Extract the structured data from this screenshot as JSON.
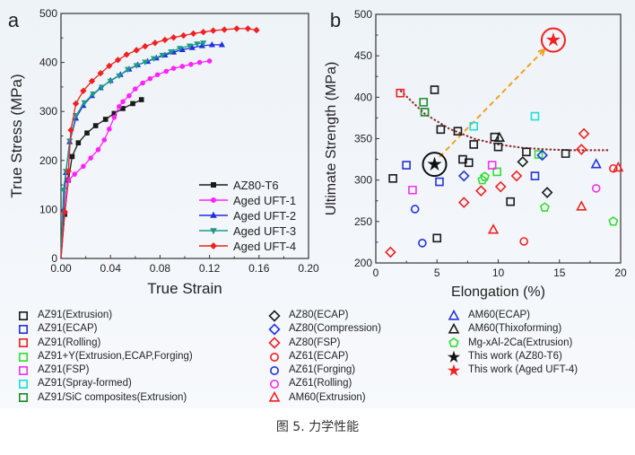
{
  "caption": "图 5. 力学性能",
  "chart_data": [
    {
      "panel": "a",
      "type": "line",
      "xlabel": "True Strain",
      "ylabel": "True Stress (MPa)",
      "xlim": [
        0,
        0.2
      ],
      "ylim": [
        0,
        500
      ],
      "xticks": [
        "0.00",
        "0.04",
        "0.08",
        "0.12",
        "0.16",
        "0.20"
      ],
      "yticks": [
        "0",
        "100",
        "200",
        "300",
        "400",
        "500"
      ],
      "legend_position": "bottom-right",
      "series": [
        {
          "name": "AZ80-T6",
          "color": "#1a1a1a",
          "marker": "square",
          "x": [
            0,
            0.003,
            0.006,
            0.009,
            0.014,
            0.021,
            0.028,
            0.036,
            0.043,
            0.05,
            0.058,
            0.065
          ],
          "y": [
            0,
            90,
            160,
            208,
            236,
            256,
            271,
            284,
            296,
            306,
            316,
            324
          ]
        },
        {
          "name": "Aged UFT-1",
          "color": "#ff22ff",
          "marker": "circle",
          "x": [
            0,
            0.003,
            0.006,
            0.011,
            0.018,
            0.024,
            0.03,
            0.035,
            0.039,
            0.043,
            0.047,
            0.05,
            0.055,
            0.06,
            0.066,
            0.072,
            0.078,
            0.085,
            0.091,
            0.098,
            0.105,
            0.112,
            0.12
          ],
          "y": [
            0,
            95,
            160,
            172,
            188,
            205,
            222,
            242,
            264,
            288,
            310,
            320,
            332,
            346,
            358,
            367,
            375,
            382,
            388,
            392,
            396,
            400,
            403
          ]
        },
        {
          "name": "Aged UFT-2",
          "color": "#1f2fe0",
          "marker": "triangle-up",
          "x": [
            0,
            0.002,
            0.004,
            0.007,
            0.012,
            0.018,
            0.025,
            0.032,
            0.04,
            0.048,
            0.055,
            0.062,
            0.07,
            0.077,
            0.084,
            0.091,
            0.098,
            0.106,
            0.114,
            0.122,
            0.13
          ],
          "y": [
            0,
            100,
            175,
            238,
            286,
            312,
            332,
            348,
            363,
            375,
            386,
            395,
            402,
            409,
            415,
            421,
            426,
            430,
            434,
            436,
            436
          ]
        },
        {
          "name": "Aged UFT-3",
          "color": "#1f9a8a",
          "marker": "triangle-down",
          "x": [
            0,
            0.002,
            0.004,
            0.007,
            0.012,
            0.019,
            0.026,
            0.033,
            0.04,
            0.047,
            0.054,
            0.061,
            0.068,
            0.075,
            0.082,
            0.089,
            0.096,
            0.104,
            0.11,
            0.115
          ],
          "y": [
            0,
            140,
            178,
            240,
            292,
            318,
            336,
            350,
            362,
            373,
            386,
            394,
            401,
            408,
            415,
            422,
            429,
            434,
            438,
            440
          ]
        },
        {
          "name": "Aged UFT-4",
          "color": "#ee2222",
          "marker": "diamond",
          "x": [
            0,
            0.003,
            0.006,
            0.008,
            0.012,
            0.018,
            0.025,
            0.032,
            0.039,
            0.046,
            0.053,
            0.061,
            0.068,
            0.076,
            0.084,
            0.091,
            0.099,
            0.107,
            0.115,
            0.123,
            0.132,
            0.142,
            0.151,
            0.158
          ],
          "y": [
            0,
            95,
            178,
            262,
            316,
            342,
            362,
            378,
            393,
            405,
            416,
            425,
            433,
            440,
            446,
            451,
            455,
            459,
            462,
            465,
            467,
            469,
            469,
            466
          ]
        }
      ]
    },
    {
      "panel": "b",
      "type": "scatter",
      "xlabel": "Elongation (%)",
      "ylabel": "Ultimate Strength (MPa)",
      "xlim": [
        0,
        20
      ],
      "ylim": [
        200,
        500
      ],
      "xticks": [
        "0",
        "5",
        "10",
        "15",
        "20"
      ],
      "yticks": [
        "200",
        "250",
        "300",
        "350",
        "400",
        "450",
        "500"
      ],
      "trend_curve": {
        "color": "#8b2a2a",
        "style": "dotted",
        "x": [
          2,
          4,
          6,
          8,
          10,
          12,
          14,
          16,
          19
        ],
        "y": [
          408,
          380,
          362,
          350,
          343,
          339,
          337,
          336,
          336
        ]
      },
      "arrow": {
        "color": "#f0a020",
        "style": "dashed",
        "from": [
          5.2,
          328
        ],
        "to": [
          13.8,
          458
        ]
      },
      "series": [
        {
          "name": "AZ91(Extrusion)",
          "color": "#1a1a1a",
          "marker": "square",
          "points": [
            [
              1.4,
              302
            ],
            [
              4.8,
              409
            ],
            [
              5.3,
              361
            ],
            [
              6.7,
              359
            ],
            [
              7.1,
              325
            ],
            [
              7.6,
              321
            ],
            [
              8.0,
              343
            ],
            [
              9.7,
              352
            ],
            [
              10.0,
              340
            ],
            [
              12.3,
              334
            ],
            [
              15.5,
              332
            ],
            [
              11.0,
              274
            ],
            [
              5.0,
              230
            ]
          ]
        },
        {
          "name": "AZ91(ECAP)",
          "color": "#2233dd",
          "marker": "square",
          "points": [
            [
              2.5,
              318
            ],
            [
              5.2,
              298
            ],
            [
              13.0,
              305
            ]
          ]
        },
        {
          "name": "AZ91(Rolling)",
          "color": "#ee2222",
          "marker": "square",
          "points": [
            [
              2.0,
              405
            ]
          ]
        },
        {
          "name": "AZ91+Y(Extrusion,ECAP,Forging)",
          "color": "#33dd33",
          "marker": "square",
          "points": [
            [
              9.9,
              310
            ],
            [
              13.3,
              331
            ]
          ]
        },
        {
          "name": "AZ91(FSP)",
          "color": "#ee33ee",
          "marker": "square",
          "points": [
            [
              3.0,
              288
            ],
            [
              9.5,
              318
            ]
          ]
        },
        {
          "name": "AZ91(Spray-formed)",
          "color": "#22dddd",
          "marker": "square",
          "points": [
            [
              8.0,
              365
            ],
            [
              13.0,
              377
            ]
          ]
        },
        {
          "name": "AZ91/SiC composites(Extrusion)",
          "color": "#1a8a2a",
          "marker": "square",
          "points": [
            [
              3.9,
              394
            ],
            [
              4.0,
              382
            ]
          ]
        },
        {
          "name": "AZ80(ECAP)",
          "color": "#1a1a1a",
          "marker": "diamond",
          "points": [
            [
              12.0,
              322
            ],
            [
              14.0,
              285
            ]
          ]
        },
        {
          "name": "AZ80(Compression)",
          "color": "#2233dd",
          "marker": "diamond",
          "points": [
            [
              7.2,
              305
            ],
            [
              13.6,
              330
            ]
          ]
        },
        {
          "name": "AZ80(FSP)",
          "color": "#ee2222",
          "marker": "diamond",
          "points": [
            [
              1.2,
              213
            ],
            [
              7.2,
              273
            ],
            [
              8.6,
              287
            ],
            [
              10.2,
              292
            ],
            [
              11.5,
              305
            ],
            [
              16.8,
              337
            ],
            [
              17.0,
              356
            ]
          ]
        },
        {
          "name": "AZ61(ECAP)",
          "color": "#ee2222",
          "marker": "circle",
          "points": [
            [
              12.1,
              226
            ],
            [
              19.4,
              314
            ]
          ]
        },
        {
          "name": "AZ61(Forging)",
          "color": "#2233dd",
          "marker": "circle",
          "points": [
            [
              3.2,
              265
            ],
            [
              3.8,
              224
            ]
          ]
        },
        {
          "name": "AZ61(Rolling)",
          "color": "#ee33ee",
          "marker": "circle",
          "points": [
            [
              18.0,
              290
            ]
          ]
        },
        {
          "name": "AM60(Extrusion)",
          "color": "#ee2222",
          "marker": "triangle",
          "points": [
            [
              9.6,
              240
            ],
            [
              16.8,
              268
            ],
            [
              19.8,
              315
            ]
          ]
        },
        {
          "name": "AM60(ECAP)",
          "color": "#2233dd",
          "marker": "triangle",
          "points": [
            [
              18.0,
              319
            ]
          ]
        },
        {
          "name": "AM60(Thixoforming)",
          "color": "#1a1a1a",
          "marker": "triangle",
          "points": [
            [
              10.1,
              351
            ]
          ]
        },
        {
          "name": "Mg-xAl-2Ca(Extrusion)",
          "color": "#33dd33",
          "marker": "pentagon",
          "points": [
            [
              8.7,
              300
            ],
            [
              8.9,
              304
            ],
            [
              13.8,
              267
            ],
            [
              19.4,
              250
            ]
          ]
        },
        {
          "name": "This work (AZ80-T6)",
          "color": "#111111",
          "marker": "star",
          "points": [
            [
              4.8,
              319
            ]
          ],
          "highlight_circle": true
        },
        {
          "name": "This work (Aged UFT-4)",
          "color": "#ee2222",
          "marker": "star",
          "points": [
            [
              14.5,
              469
            ]
          ],
          "highlight_circle": true
        }
      ]
    }
  ],
  "labels": {
    "panel_a": "a",
    "panel_b": "b"
  }
}
